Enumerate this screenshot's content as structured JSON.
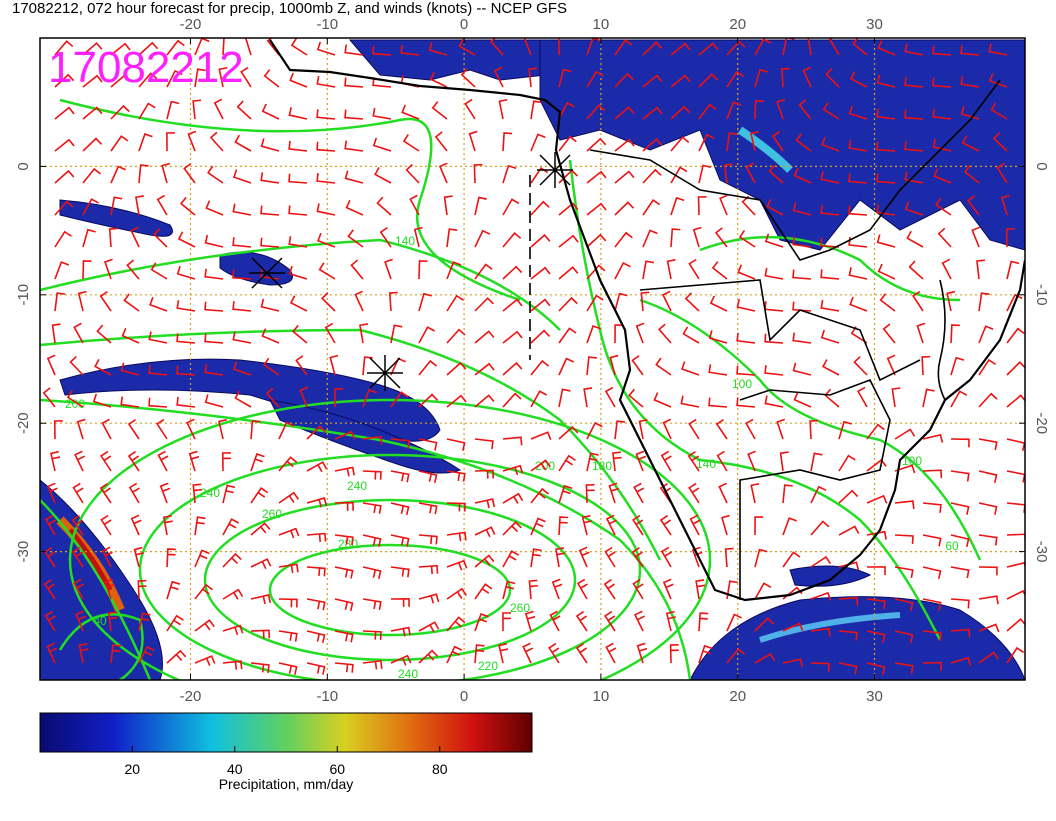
{
  "header": {
    "title": "17082212, 072 hour forecast for precip, 1000mb Z, and winds (knots) -- NCEP GFS"
  },
  "map": {
    "stamp": "17082212",
    "lonlim": [
      -31,
      41
    ],
    "latlim": [
      -40,
      10
    ],
    "lon_ticks": [
      -20,
      -10,
      0,
      10,
      20,
      30
    ],
    "lat_ticks": [
      0,
      -10,
      -20,
      -30
    ],
    "contour_labels": [
      "140",
      "200",
      "240",
      "260",
      "280",
      "240",
      "200",
      "180",
      "140",
      "100",
      "60",
      "260",
      "220",
      "240",
      "100",
      "40"
    ]
  },
  "colorbar": {
    "lim": [
      2,
      98
    ],
    "ticks": [
      20,
      40,
      60,
      80
    ],
    "label": "Precipitation, mm/day"
  }
}
